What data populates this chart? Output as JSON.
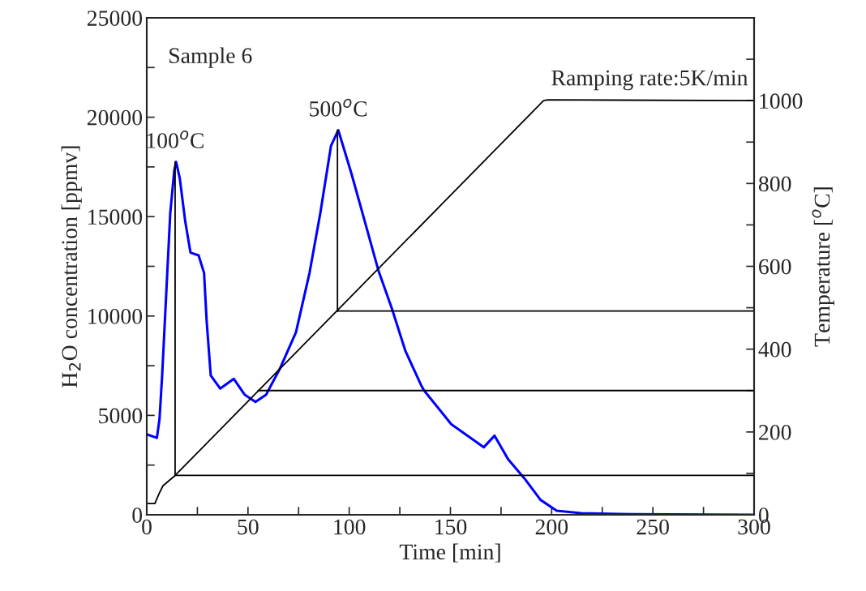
{
  "chart_data": {
    "type": "line",
    "xlabel": "Time [min]",
    "ylabel": "H$_{2}$O concentration [ppmv]",
    "y2label": "Temperature [$^{o}$C]",
    "xlim": [
      0,
      300
    ],
    "xticks": [
      0,
      {
        "value": 25,
        "label": null
      },
      50,
      {
        "value": 75,
        "label": null
      },
      100,
      {
        "value": 125,
        "label": null
      },
      150,
      {
        "value": 175,
        "label": null
      },
      200,
      {
        "value": 225,
        "label": null
      },
      250,
      {
        "value": 275,
        "label": null
      },
      300
    ],
    "ylim": [
      0,
      25000
    ],
    "yticks": [
      0,
      {
        "value": 2500,
        "label": null
      },
      5000,
      {
        "value": 7500,
        "label": null
      },
      10000,
      {
        "value": 12500,
        "label": null
      },
      15000,
      {
        "value": 17500,
        "label": null
      },
      20000,
      {
        "value": 22500,
        "label": null
      },
      25000
    ],
    "y2lim": [
      0,
      1200
    ],
    "y2ticks": [
      0,
      {
        "value": 100,
        "label": null
      },
      200,
      {
        "value": 300,
        "label": null
      },
      400,
      {
        "value": 500,
        "label": null
      },
      600,
      {
        "value": 700,
        "label": null
      },
      800,
      {
        "value": 900,
        "label": null
      },
      1000,
      {
        "value": 1100,
        "label": null
      }
    ],
    "grid": false,
    "legend": false,
    "marker": "none",
    "line_style": "solid",
    "series": [
      {
        "color": "#0000ff",
        "axis": "y",
        "x": [
          0,
          0.3,
          5,
          6.3,
          7.6,
          9.6,
          11.6,
          13.6,
          14.5,
          16.3,
          19,
          21.6,
          25.6,
          28.3,
          29.6,
          31.6,
          36.3,
          43,
          48.3,
          53.7,
          59,
          65.7,
          73.7,
          80.4,
          85.7,
          91,
          94.6,
          101,
          107.7,
          114.4,
          121,
          127.8,
          135.8,
          137,
          150.4,
          166.5,
          171.8,
          178.5,
          186.5,
          194.5,
          202.5,
          214.6,
          240,
          300
        ],
        "values": [
          4000,
          4040,
          3870,
          4820,
          7010,
          11090,
          15170,
          17330,
          17750,
          16930,
          14760,
          13190,
          13050,
          12170,
          9720,
          7010,
          6350,
          6840,
          6050,
          5680,
          6050,
          7340,
          9180,
          12170,
          15160,
          18560,
          19350,
          17200,
          14760,
          12300,
          10400,
          8230,
          6460,
          6250,
          4560,
          3400,
          3980,
          2790,
          1840,
          750,
          200,
          80,
          30,
          0
        ]
      },
      {
        "color": "#000000",
        "axis": "y2",
        "x": [
          0,
          4,
          6,
          8,
          14,
          196,
          198,
          300
        ],
        "values": [
          27,
          27,
          50,
          70,
          95,
          1000,
          1002,
          1000
        ]
      },
      {
        "color": "#000000",
        "axis": "y",
        "x": [
          14,
          14
        ],
        "values": [
          17750,
          1980
        ]
      },
      {
        "color": "#000000",
        "axis": "y",
        "x": [
          94.2,
          94.2
        ],
        "values": [
          19350,
          10240
        ]
      },
      {
        "color": "#000000",
        "axis": "y2",
        "x": [
          14,
          300
        ],
        "values": [
          95,
          95
        ]
      },
      {
        "color": "#000000",
        "axis": "y2",
        "x": [
          55,
          300
        ],
        "values": [
          300,
          300
        ]
      },
      {
        "color": "#000000",
        "axis": "y2",
        "x": [
          94.2,
          300
        ],
        "values": [
          492,
          492
        ]
      }
    ],
    "annotations": [
      "Sample 6",
      "Ramping rate:5K/min",
      {
        "text": "100$^{o}$C",
        "x": 14,
        "y": 17750
      },
      {
        "text": "500$^{o}$C",
        "x": 94.6,
        "y": 19350
      }
    ]
  }
}
